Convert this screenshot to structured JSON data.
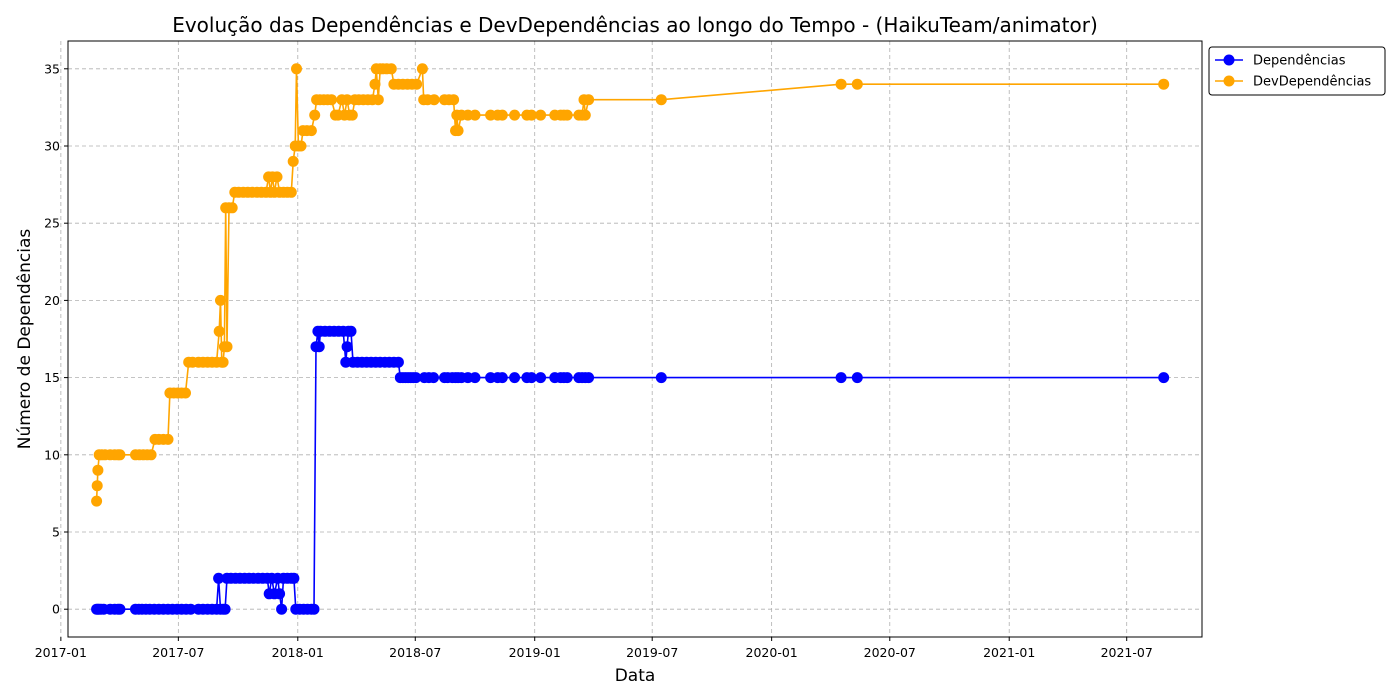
{
  "chart_data": {
    "type": "line",
    "title": "Evolução das Dependências e DevDependências ao longo do Tempo - (HaikuTeam/animator)",
    "xlabel": "Data",
    "ylabel": "Número de Dependências",
    "xlim": [
      "2017-01-12",
      "2021-10-25"
    ],
    "ylim": [
      -1.8,
      36.8
    ],
    "x_ticks": [
      "2017-01",
      "2017-07",
      "2018-01",
      "2018-07",
      "2019-01",
      "2019-07",
      "2020-01",
      "2020-07",
      "2021-01",
      "2021-07"
    ],
    "y_ticks": [
      0,
      5,
      10,
      15,
      20,
      25,
      30,
      35
    ],
    "grid": true,
    "legend_position": "outside-top-right",
    "series": [
      {
        "name": "Dependências",
        "color": "#0000ff",
        "points": [
          [
            "2017-02-25",
            0
          ],
          [
            "2017-02-27",
            0
          ],
          [
            "2017-03-01",
            0
          ],
          [
            "2017-03-04",
            0
          ],
          [
            "2017-03-08",
            0
          ],
          [
            "2017-03-18",
            0
          ],
          [
            "2017-03-25",
            0
          ],
          [
            "2017-03-30",
            0
          ],
          [
            "2017-04-02",
            0
          ],
          [
            "2017-04-26",
            0
          ],
          [
            "2017-05-01",
            0
          ],
          [
            "2017-05-06",
            0
          ],
          [
            "2017-05-12",
            0
          ],
          [
            "2017-05-18",
            0
          ],
          [
            "2017-05-25",
            0
          ],
          [
            "2017-06-01",
            0
          ],
          [
            "2017-06-08",
            0
          ],
          [
            "2017-06-15",
            0
          ],
          [
            "2017-06-22",
            0
          ],
          [
            "2017-06-29",
            0
          ],
          [
            "2017-07-06",
            0
          ],
          [
            "2017-07-13",
            0
          ],
          [
            "2017-07-20",
            0
          ],
          [
            "2017-08-01",
            0
          ],
          [
            "2017-08-08",
            0
          ],
          [
            "2017-08-15",
            0
          ],
          [
            "2017-08-22",
            0
          ],
          [
            "2017-08-29",
            0
          ],
          [
            "2017-09-01",
            2
          ],
          [
            "2017-09-04",
            0
          ],
          [
            "2017-09-08",
            0
          ],
          [
            "2017-09-11",
            0
          ],
          [
            "2017-09-14",
            2
          ],
          [
            "2017-09-20",
            2
          ],
          [
            "2017-09-27",
            2
          ],
          [
            "2017-10-04",
            2
          ],
          [
            "2017-10-11",
            2
          ],
          [
            "2017-10-18",
            2
          ],
          [
            "2017-10-25",
            2
          ],
          [
            "2017-11-01",
            2
          ],
          [
            "2017-11-08",
            2
          ],
          [
            "2017-11-15",
            2
          ],
          [
            "2017-11-18",
            1
          ],
          [
            "2017-11-22",
            2
          ],
          [
            "2017-11-26",
            1
          ],
          [
            "2017-12-01",
            2
          ],
          [
            "2017-12-04",
            1
          ],
          [
            "2017-12-07",
            0
          ],
          [
            "2017-12-10",
            2
          ],
          [
            "2017-12-16",
            2
          ],
          [
            "2017-12-22",
            2
          ],
          [
            "2017-12-26",
            2
          ],
          [
            "2017-12-29",
            0
          ],
          [
            "2018-01-04",
            0
          ],
          [
            "2018-01-10",
            0
          ],
          [
            "2018-01-16",
            0
          ],
          [
            "2018-01-22",
            0
          ],
          [
            "2018-01-26",
            0
          ],
          [
            "2018-01-29",
            17
          ],
          [
            "2018-02-01",
            18
          ],
          [
            "2018-02-03",
            17
          ],
          [
            "2018-02-05",
            18
          ],
          [
            "2018-02-12",
            18
          ],
          [
            "2018-02-19",
            18
          ],
          [
            "2018-02-26",
            18
          ],
          [
            "2018-03-05",
            18
          ],
          [
            "2018-03-12",
            18
          ],
          [
            "2018-03-16",
            16
          ],
          [
            "2018-03-18",
            17
          ],
          [
            "2018-03-20",
            18
          ],
          [
            "2018-03-24",
            18
          ],
          [
            "2018-03-27",
            16
          ],
          [
            "2018-04-03",
            16
          ],
          [
            "2018-04-10",
            16
          ],
          [
            "2018-04-17",
            16
          ],
          [
            "2018-04-24",
            16
          ],
          [
            "2018-05-01",
            16
          ],
          [
            "2018-05-08",
            16
          ],
          [
            "2018-05-15",
            16
          ],
          [
            "2018-05-22",
            16
          ],
          [
            "2018-05-29",
            16
          ],
          [
            "2018-06-05",
            16
          ],
          [
            "2018-06-08",
            15
          ],
          [
            "2018-06-12",
            15
          ],
          [
            "2018-06-16",
            15
          ],
          [
            "2018-06-20",
            15
          ],
          [
            "2018-06-24",
            15
          ],
          [
            "2018-06-28",
            15
          ],
          [
            "2018-07-02",
            15
          ],
          [
            "2018-07-15",
            15
          ],
          [
            "2018-07-22",
            15
          ],
          [
            "2018-07-29",
            15
          ],
          [
            "2018-08-15",
            15
          ],
          [
            "2018-08-20",
            15
          ],
          [
            "2018-08-27",
            15
          ],
          [
            "2018-09-01",
            15
          ],
          [
            "2018-09-05",
            15
          ],
          [
            "2018-09-10",
            15
          ],
          [
            "2018-09-20",
            15
          ],
          [
            "2018-10-01",
            15
          ],
          [
            "2018-10-25",
            15
          ],
          [
            "2018-11-05",
            15
          ],
          [
            "2018-11-12",
            15
          ],
          [
            "2018-12-01",
            15
          ],
          [
            "2018-12-20",
            15
          ],
          [
            "2018-12-27",
            15
          ],
          [
            "2019-01-10",
            15
          ],
          [
            "2019-02-01",
            15
          ],
          [
            "2019-02-10",
            15
          ],
          [
            "2019-02-15",
            15
          ],
          [
            "2019-02-20",
            15
          ],
          [
            "2019-03-10",
            15
          ],
          [
            "2019-03-15",
            15
          ],
          [
            "2019-03-20",
            15
          ],
          [
            "2019-03-25",
            15
          ],
          [
            "2019-07-15",
            15
          ],
          [
            "2020-04-17",
            15
          ],
          [
            "2020-05-12",
            15
          ],
          [
            "2021-08-27",
            15
          ]
        ]
      },
      {
        "name": "DevDependências",
        "color": "#ffa500",
        "points": [
          [
            "2017-02-25",
            7
          ],
          [
            "2017-02-26",
            8
          ],
          [
            "2017-02-27",
            9
          ],
          [
            "2017-03-01",
            10
          ],
          [
            "2017-03-05",
            10
          ],
          [
            "2017-03-10",
            10
          ],
          [
            "2017-03-18",
            10
          ],
          [
            "2017-03-25",
            10
          ],
          [
            "2017-03-30",
            10
          ],
          [
            "2017-04-02",
            10
          ],
          [
            "2017-04-26",
            10
          ],
          [
            "2017-05-02",
            10
          ],
          [
            "2017-05-08",
            10
          ],
          [
            "2017-05-14",
            10
          ],
          [
            "2017-05-20",
            10
          ],
          [
            "2017-05-26",
            11
          ],
          [
            "2017-06-01",
            11
          ],
          [
            "2017-06-08",
            11
          ],
          [
            "2017-06-15",
            11
          ],
          [
            "2017-06-18",
            14
          ],
          [
            "2017-06-24",
            14
          ],
          [
            "2017-06-30",
            14
          ],
          [
            "2017-07-06",
            14
          ],
          [
            "2017-07-12",
            14
          ],
          [
            "2017-07-17",
            16
          ],
          [
            "2017-07-23",
            16
          ],
          [
            "2017-08-01",
            16
          ],
          [
            "2017-08-08",
            16
          ],
          [
            "2017-08-15",
            16
          ],
          [
            "2017-08-22",
            16
          ],
          [
            "2017-08-29",
            16
          ],
          [
            "2017-09-02",
            18
          ],
          [
            "2017-09-04",
            20
          ],
          [
            "2017-09-06",
            16
          ],
          [
            "2017-09-08",
            16
          ],
          [
            "2017-09-10",
            17
          ],
          [
            "2017-09-12",
            26
          ],
          [
            "2017-09-14",
            17
          ],
          [
            "2017-09-17",
            26
          ],
          [
            "2017-09-22",
            26
          ],
          [
            "2017-09-26",
            27
          ],
          [
            "2017-10-02",
            27
          ],
          [
            "2017-10-09",
            27
          ],
          [
            "2017-10-16",
            27
          ],
          [
            "2017-10-23",
            27
          ],
          [
            "2017-10-30",
            27
          ],
          [
            "2017-11-06",
            27
          ],
          [
            "2017-11-13",
            27
          ],
          [
            "2017-11-17",
            28
          ],
          [
            "2017-11-20",
            27
          ],
          [
            "2017-11-23",
            28
          ],
          [
            "2017-11-26",
            27
          ],
          [
            "2017-11-30",
            28
          ],
          [
            "2017-12-04",
            27
          ],
          [
            "2017-12-10",
            27
          ],
          [
            "2017-12-16",
            27
          ],
          [
            "2017-12-22",
            27
          ],
          [
            "2017-12-25",
            29
          ],
          [
            "2017-12-28",
            30
          ],
          [
            "2017-12-30",
            35
          ],
          [
            "2018-01-02",
            30
          ],
          [
            "2018-01-06",
            30
          ],
          [
            "2018-01-09",
            31
          ],
          [
            "2018-01-15",
            31
          ],
          [
            "2018-01-22",
            31
          ],
          [
            "2018-01-27",
            32
          ],
          [
            "2018-01-30",
            33
          ],
          [
            "2018-02-04",
            33
          ],
          [
            "2018-02-10",
            33
          ],
          [
            "2018-02-16",
            33
          ],
          [
            "2018-02-22",
            33
          ],
          [
            "2018-02-28",
            32
          ],
          [
            "2018-03-04",
            32
          ],
          [
            "2018-03-10",
            33
          ],
          [
            "2018-03-14",
            32
          ],
          [
            "2018-03-18",
            33
          ],
          [
            "2018-03-22",
            32
          ],
          [
            "2018-03-26",
            32
          ],
          [
            "2018-03-30",
            33
          ],
          [
            "2018-04-05",
            33
          ],
          [
            "2018-04-12",
            33
          ],
          [
            "2018-04-19",
            33
          ],
          [
            "2018-04-26",
            33
          ],
          [
            "2018-04-30",
            34
          ],
          [
            "2018-05-02",
            35
          ],
          [
            "2018-05-05",
            33
          ],
          [
            "2018-05-08",
            35
          ],
          [
            "2018-05-12",
            35
          ],
          [
            "2018-05-18",
            35
          ],
          [
            "2018-05-25",
            35
          ],
          [
            "2018-05-29",
            34
          ],
          [
            "2018-06-05",
            34
          ],
          [
            "2018-06-12",
            34
          ],
          [
            "2018-06-19",
            34
          ],
          [
            "2018-06-26",
            34
          ],
          [
            "2018-07-03",
            34
          ],
          [
            "2018-07-12",
            35
          ],
          [
            "2018-07-14",
            33
          ],
          [
            "2018-07-20",
            33
          ],
          [
            "2018-07-30",
            33
          ],
          [
            "2018-08-15",
            33
          ],
          [
            "2018-08-22",
            33
          ],
          [
            "2018-08-29",
            33
          ],
          [
            "2018-09-01",
            31
          ],
          [
            "2018-09-03",
            32
          ],
          [
            "2018-09-05",
            31
          ],
          [
            "2018-09-10",
            32
          ],
          [
            "2018-09-20",
            32
          ],
          [
            "2018-10-01",
            32
          ],
          [
            "2018-10-25",
            32
          ],
          [
            "2018-11-05",
            32
          ],
          [
            "2018-11-12",
            32
          ],
          [
            "2018-12-01",
            32
          ],
          [
            "2018-12-20",
            32
          ],
          [
            "2018-12-27",
            32
          ],
          [
            "2019-01-10",
            32
          ],
          [
            "2019-02-01",
            32
          ],
          [
            "2019-02-10",
            32
          ],
          [
            "2019-02-15",
            32
          ],
          [
            "2019-02-20",
            32
          ],
          [
            "2019-03-10",
            32
          ],
          [
            "2019-03-15",
            32
          ],
          [
            "2019-03-18",
            33
          ],
          [
            "2019-03-20",
            32
          ],
          [
            "2019-03-25",
            33
          ],
          [
            "2019-07-15",
            33
          ],
          [
            "2020-04-17",
            34
          ],
          [
            "2020-05-12",
            34
          ],
          [
            "2021-08-27",
            34
          ]
        ]
      }
    ]
  }
}
